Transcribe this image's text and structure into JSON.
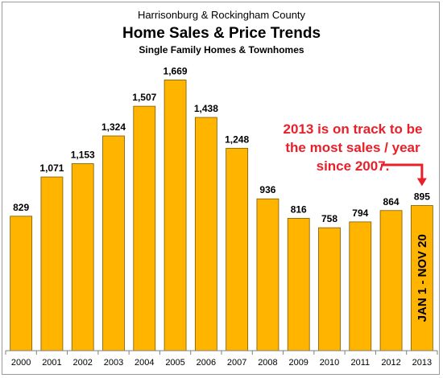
{
  "chart_data": {
    "type": "bar",
    "title_top": "Harrisonburg & Rockingham County",
    "title": "Home Sales & Price Trends",
    "subtitle": "Single Family Homes & Townhomes",
    "categories": [
      "2000",
      "2001",
      "2002",
      "2003",
      "2004",
      "2005",
      "2006",
      "2007",
      "2008",
      "2009",
      "2010",
      "2011",
      "2012",
      "2013"
    ],
    "values": [
      829,
      1071,
      1153,
      1324,
      1507,
      1669,
      1438,
      1248,
      936,
      816,
      758,
      794,
      864,
      895
    ],
    "value_labels": [
      "829",
      "1,071",
      "1,153",
      "1,324",
      "1,507",
      "1,669",
      "1,438",
      "1,248",
      "936",
      "816",
      "758",
      "794",
      "864",
      "895"
    ],
    "ylim": [
      0,
      1800
    ],
    "grid": false,
    "bar_color": "#FFB400",
    "annotation_color": "#E8202A",
    "annotation": [
      "2013 is on track to be",
      "the most sales / year",
      "since 2007."
    ],
    "bar_inner_label": "JAN 1 - NOV 20"
  }
}
